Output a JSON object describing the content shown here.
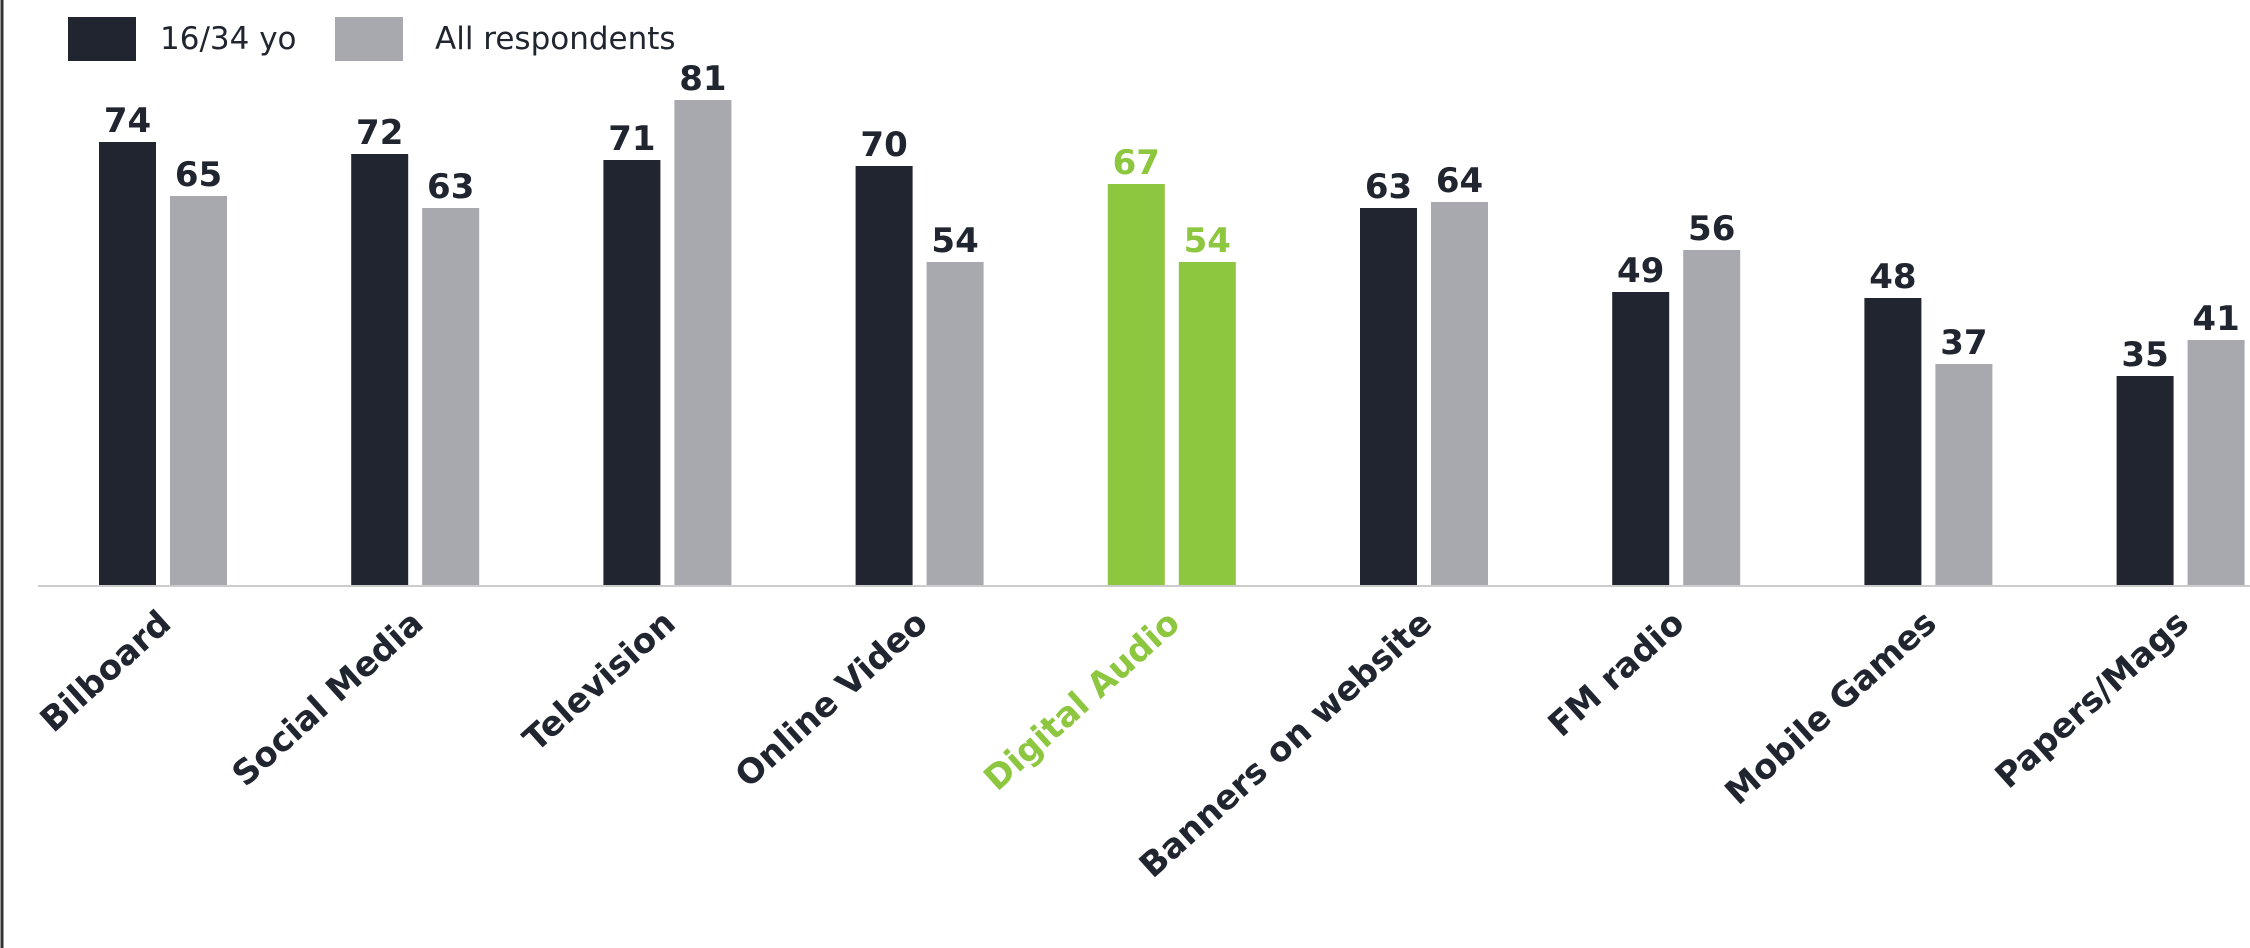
{
  "chart_data": {
    "type": "bar",
    "categories": [
      "Bilboard",
      "Social Media",
      "Television",
      "Online Video",
      "Digital Audio",
      "Banners on website",
      "FM radio",
      "Mobile Games",
      "Papers/Mags"
    ],
    "highlight_category": "Digital Audio",
    "series": [
      {
        "name": "16/34 yo",
        "values": [
          74,
          72,
          71,
          70,
          67,
          63,
          49,
          48,
          35
        ]
      },
      {
        "name": "All respondents",
        "values": [
          65,
          63,
          81,
          54,
          54,
          64,
          56,
          37,
          41
        ]
      }
    ],
    "ylim": [
      0,
      81
    ],
    "grid": false,
    "legend_position": "top-left",
    "colors": {
      "series": [
        "#20252f",
        "#a8a9ae"
      ],
      "highlight": "#8dc63f",
      "label_text": "#20252f",
      "axis": "#cccccc",
      "frame": "#333333"
    }
  }
}
